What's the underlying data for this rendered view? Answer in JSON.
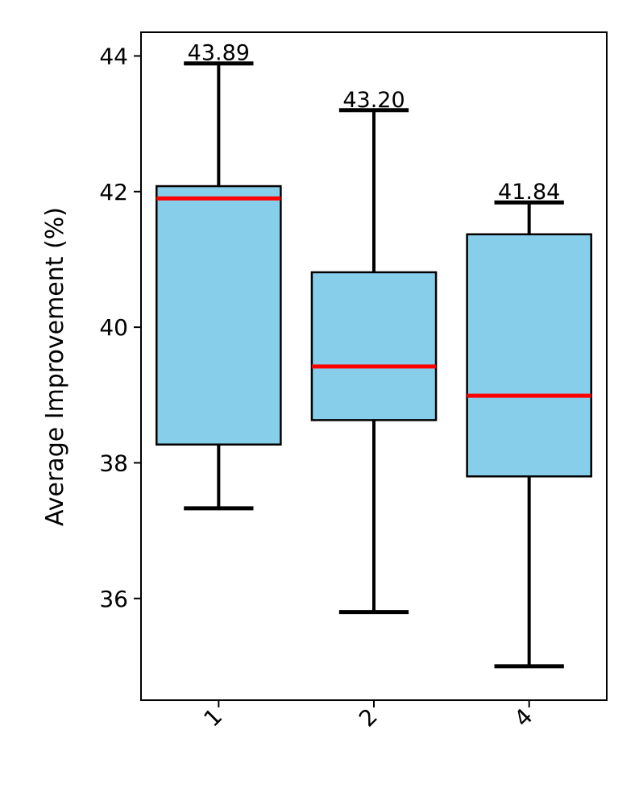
{
  "chart_data": {
    "type": "box",
    "ylabel": "Average Improvement (%)",
    "ylim": [
      34.5,
      44.35
    ],
    "yticks": [
      36,
      38,
      40,
      42,
      44
    ],
    "categories": [
      "1",
      "2",
      "4"
    ],
    "boxes": [
      {
        "category": "1",
        "whisker_low": 37.33,
        "q1": 38.27,
        "median": 41.9,
        "q3": 42.08,
        "whisker_high": 43.89,
        "max_label": "43.89"
      },
      {
        "category": "2",
        "whisker_low": 35.8,
        "q1": 38.63,
        "median": 39.42,
        "q3": 40.81,
        "whisker_high": 43.2,
        "max_label": "43.20"
      },
      {
        "category": "4",
        "whisker_low": 35.0,
        "q1": 37.8,
        "median": 38.99,
        "q3": 41.37,
        "whisker_high": 41.84,
        "max_label": "41.84"
      }
    ],
    "colors": {
      "box_fill": "#87CEEB",
      "median": "#ff0000",
      "outline": "#000000"
    },
    "grid": false,
    "legend": "none"
  }
}
